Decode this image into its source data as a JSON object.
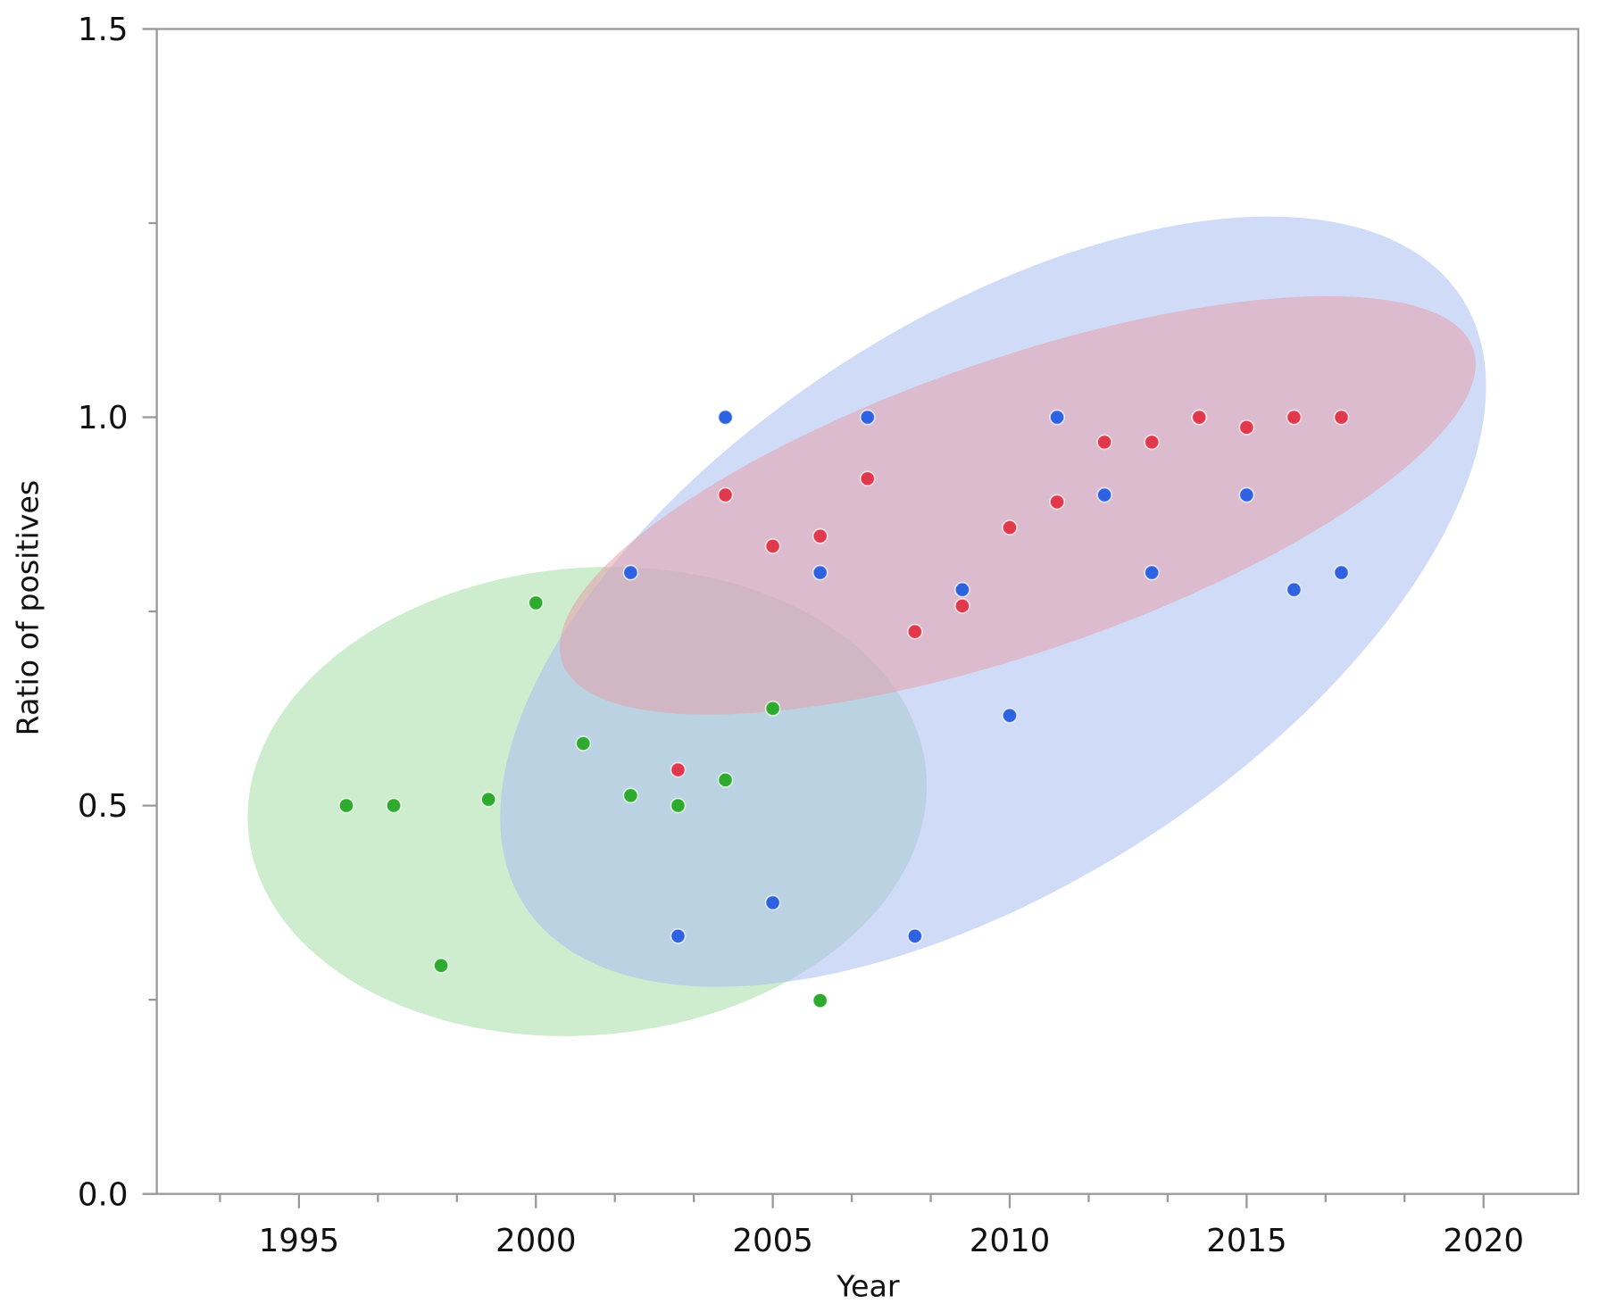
{
  "chart_data": {
    "type": "scatter",
    "title": "",
    "xlabel": "Year",
    "ylabel": "Ratio of positives",
    "xlim": [
      1992,
      2022
    ],
    "ylim": [
      0,
      1.5
    ],
    "x_ticks": [
      1995,
      2000,
      2005,
      2010,
      2015,
      2020
    ],
    "x_tick_labels": [
      "1995",
      "2000",
      "2005",
      "2010",
      "2015",
      "2020"
    ],
    "y_ticks": [
      0,
      0.5,
      1.0,
      1.5
    ],
    "y_tick_labels": [
      "0.0",
      "0.5",
      "1.0",
      "1.5"
    ],
    "grid": false,
    "legend": "none",
    "series": [
      {
        "name": "green",
        "color": "#2eaa2e",
        "ellipse_color": "#a6dda6",
        "x": [
          1996,
          1997,
          1998,
          1999,
          2000,
          2001,
          2002,
          2003,
          2004,
          2005,
          2006
        ],
        "y": [
          0.5,
          0.5,
          0.294,
          0.508,
          0.761,
          0.58,
          0.513,
          0.5,
          0.533,
          0.625,
          0.249
        ]
      },
      {
        "name": "blue",
        "color": "#2f62e0",
        "ellipse_color": "#a9bdf0",
        "x": [
          2002,
          2003,
          2004,
          2005,
          2006,
          2007,
          2008,
          2009,
          2010,
          2011,
          2012,
          2013,
          2014,
          2015,
          2016,
          2017
        ],
        "y": [
          0.8,
          0.332,
          1.0,
          0.375,
          0.8,
          1.0,
          0.332,
          0.778,
          0.616,
          1.0,
          0.9,
          0.8,
          1.0,
          0.9,
          0.778,
          0.8
        ]
      },
      {
        "name": "red",
        "color": "#e0394b",
        "ellipse_color": "#e4a0ab",
        "x": [
          2003,
          2004,
          2005,
          2006,
          2007,
          2008,
          2009,
          2010,
          2011,
          2012,
          2013,
          2014,
          2015,
          2016,
          2017
        ],
        "y": [
          0.546,
          0.9,
          0.834,
          0.847,
          0.921,
          0.724,
          0.757,
          0.858,
          0.891,
          0.968,
          0.968,
          1.0,
          0.987,
          1.0,
          1.0
        ]
      }
    ]
  }
}
